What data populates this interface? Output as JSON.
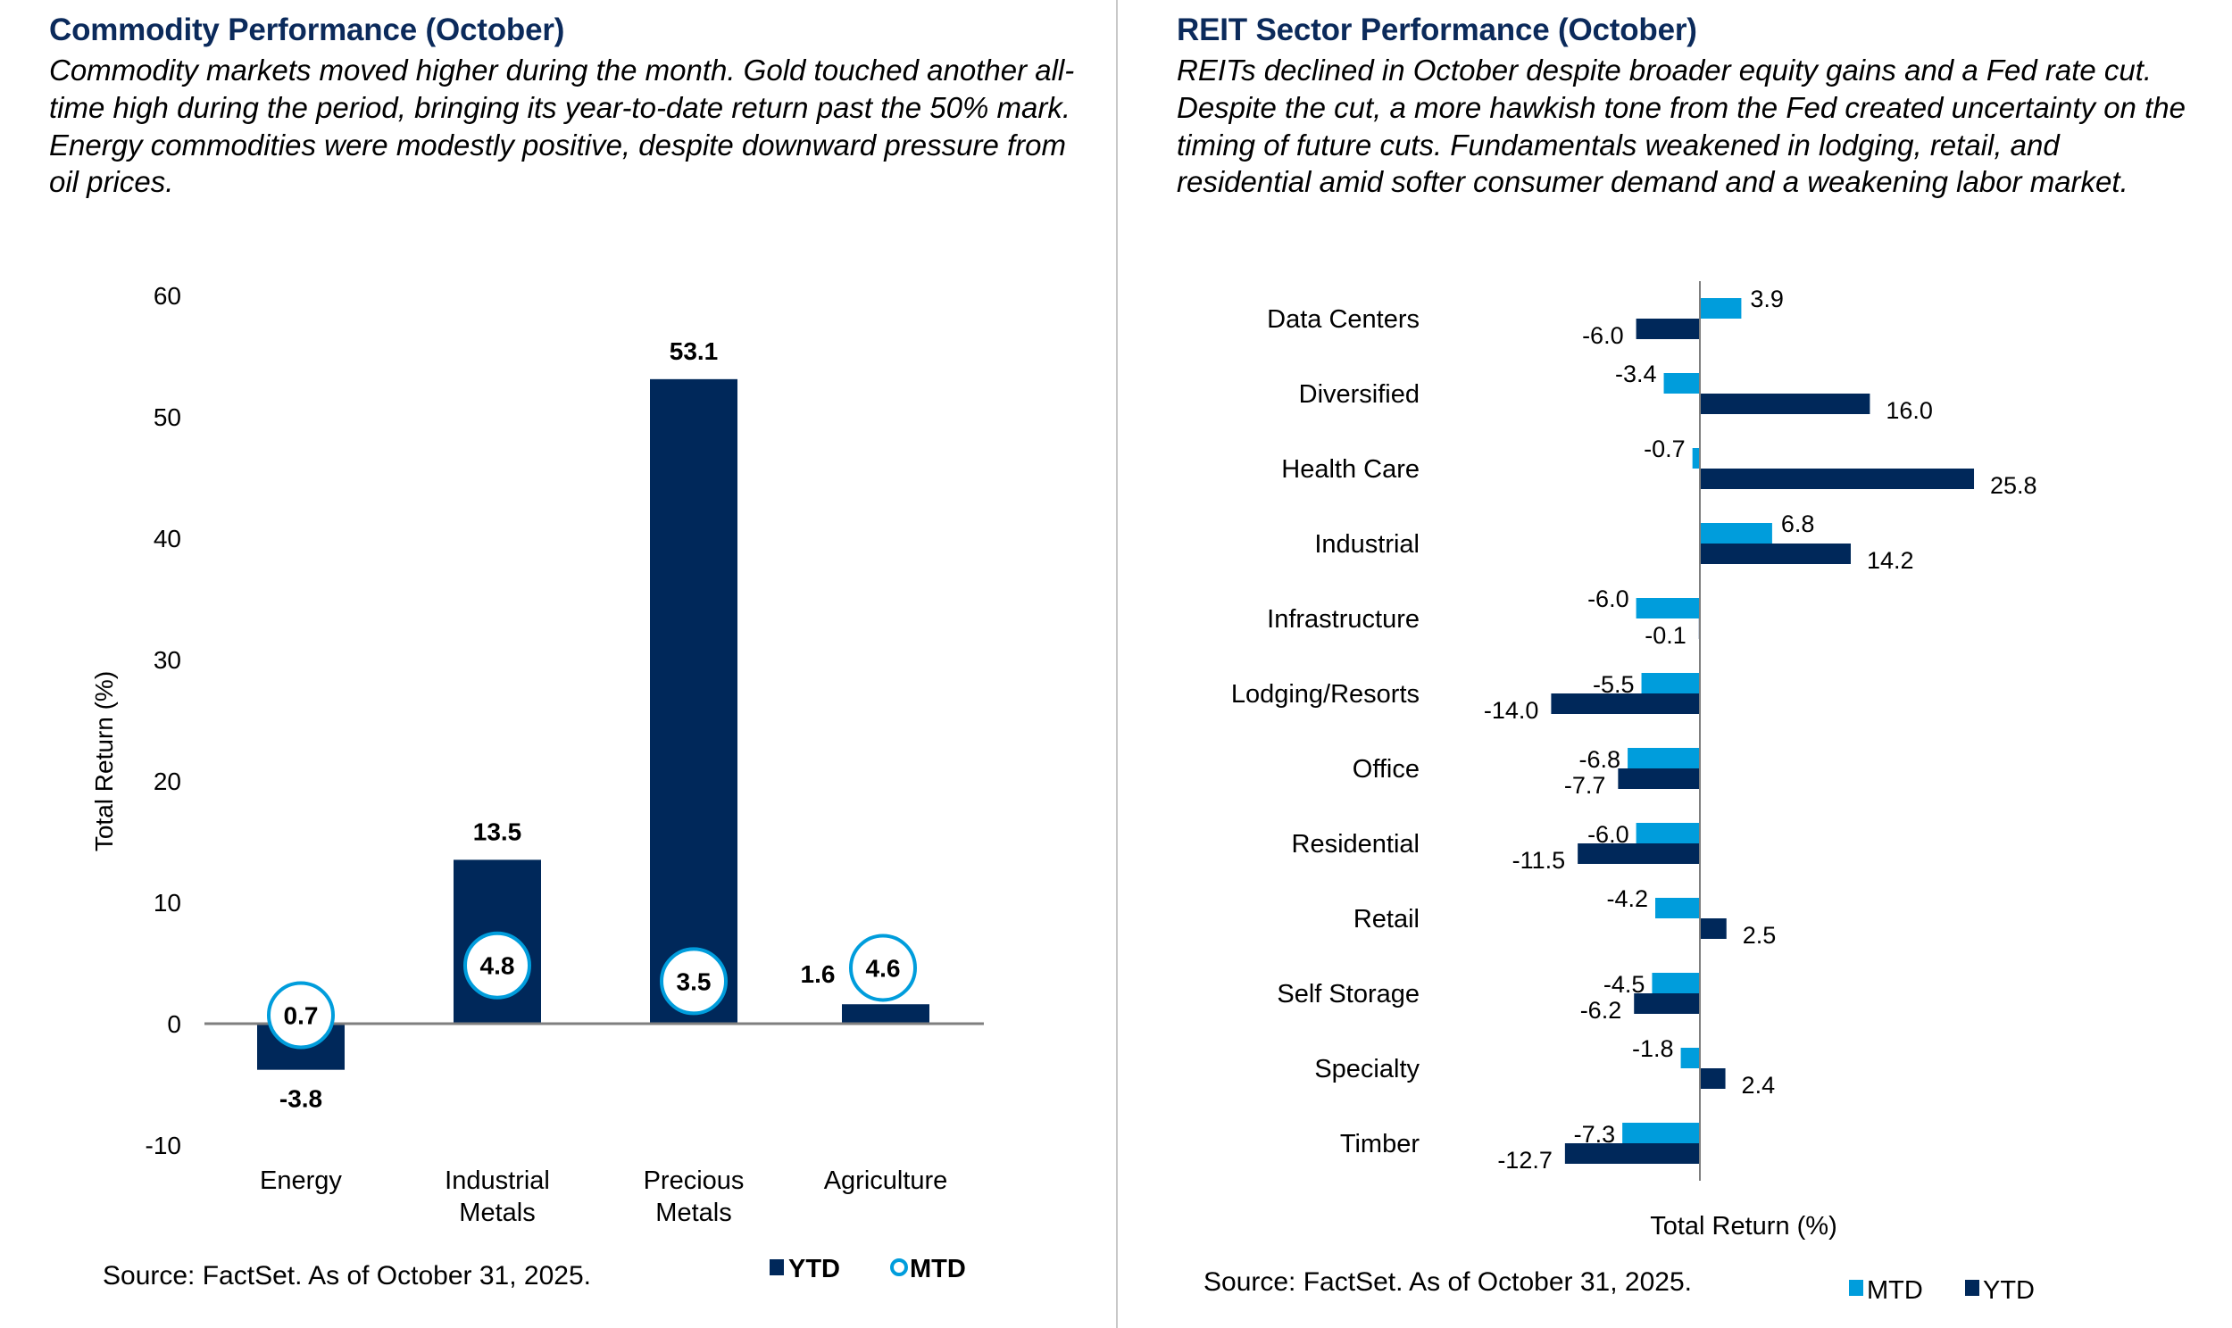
{
  "colors": {
    "navy": "#00285a",
    "light_blue": "#009ddc",
    "title": "#0b2a5b",
    "axis": "#7f7f7f",
    "divider": "#c8c8c8"
  },
  "left": {
    "title": "Commodity Performance (October)",
    "description": "Commodity markets moved higher during the month. Gold touched another all-time high during the period, bringing its year-to-date return past the 50% mark. Energy commodities were modestly positive, despite downward pressure from oil prices.",
    "source": "Source: FactSet. As of October 31, 2025."
  },
  "right": {
    "title": "REIT Sector Performance (October)",
    "description": "REITs declined in October despite broader equity gains and a Fed rate cut. Despite the cut, a more hawkish tone from the Fed created uncertainty on the timing of future cuts. Fundamentals weakened in lodging, retail, and residential amid softer consumer demand and a weakening labor market.",
    "source": "Source: FactSet. As of October 31, 2025."
  },
  "chart_data": [
    {
      "type": "bar",
      "title": "Commodity Performance (October)",
      "xlabel": "",
      "ylabel": "Total Return (%)",
      "ylim": [
        -10,
        60
      ],
      "yticks": [
        -10,
        0,
        10,
        20,
        30,
        40,
        50,
        60
      ],
      "grid": false,
      "categories": [
        [
          "Energy"
        ],
        [
          "Industrial",
          "Metals"
        ],
        [
          "Precious",
          "Metals"
        ],
        [
          "Agriculture"
        ]
      ],
      "series": [
        {
          "name": "YTD",
          "mark": "bar",
          "values": [
            -3.8,
            13.5,
            53.1,
            1.6
          ],
          "labels": [
            "-3.8",
            "13.5",
            "53.1",
            "1.6"
          ]
        },
        {
          "name": "MTD",
          "mark": "circle-marker",
          "values": [
            0.7,
            4.8,
            3.5,
            4.6
          ],
          "labels": [
            "0.7",
            "4.8",
            "3.5",
            "4.6"
          ]
        }
      ],
      "legend": {
        "position": "bottom-right",
        "items": [
          {
            "label": "YTD",
            "symbol": "square"
          },
          {
            "label": "MTD",
            "symbol": "circle"
          }
        ]
      }
    },
    {
      "type": "bar",
      "orientation": "horizontal",
      "title": "REIT Sector Performance (October)",
      "xlabel": "Total Return (%)",
      "ylabel": "",
      "grid": false,
      "categories": [
        "Data Centers",
        "Diversified",
        "Health Care",
        "Industrial",
        "Infrastructure",
        "Lodging/Resorts",
        "Office",
        "Residential",
        "Retail",
        "Self Storage",
        "Specialty",
        "Timber"
      ],
      "series": [
        {
          "name": "MTD",
          "values": [
            3.9,
            -3.4,
            -0.7,
            6.8,
            -6.0,
            -5.5,
            -6.8,
            -6.0,
            -4.2,
            -4.5,
            -1.8,
            -7.3
          ],
          "labels": [
            "3.9",
            "-3.4",
            "-0.7",
            "6.8",
            "-6.0",
            "-5.5",
            "-6.8",
            "-6.0",
            "-4.2",
            "-4.5",
            "-1.8",
            "-7.3"
          ]
        },
        {
          "name": "YTD",
          "values": [
            -6.0,
            16.0,
            25.8,
            14.2,
            -0.1,
            -14.0,
            -7.7,
            -11.5,
            2.5,
            -6.2,
            2.4,
            -12.7
          ],
          "labels": [
            "-6.0",
            "16.0",
            "25.8",
            "14.2",
            "-0.1",
            "-14.0",
            "-7.7",
            "-11.5",
            "2.5",
            "-6.2",
            "2.4",
            "-12.7"
          ]
        }
      ],
      "legend": {
        "position": "bottom-right",
        "items": [
          {
            "label": "MTD",
            "symbol": "square"
          },
          {
            "label": "YTD",
            "symbol": "square"
          }
        ]
      }
    }
  ]
}
